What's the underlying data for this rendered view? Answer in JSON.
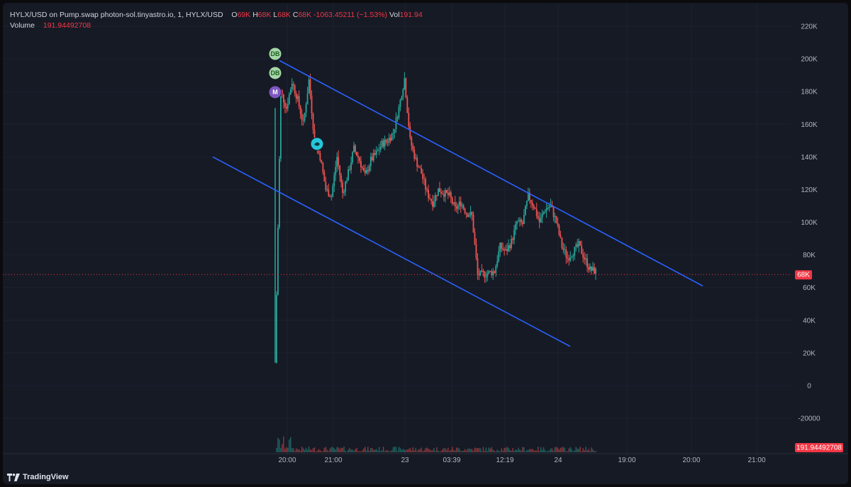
{
  "legend": {
    "symbol": "HYLX/USD on Pump.swap photon-sol.tinyastro.io, 1, HYLX/USD",
    "o_label": "O",
    "o_value": "69K",
    "h_label": "H",
    "h_value": "68K",
    "l_label": "L",
    "l_value": "68K",
    "c_label": "C",
    "c_value": "68K",
    "change": "-1063.45211 (−1.53%)",
    "vol_label": "Vol",
    "vol_value": "191.94",
    "volume_label": "Volume",
    "volume_value": "191.94492708"
  },
  "price_axis": {
    "ticks": [
      "220K",
      "200K",
      "180K",
      "160K",
      "140K",
      "120K",
      "100K",
      "80K",
      "60K",
      "40K",
      "20K",
      "0",
      "-20000"
    ],
    "tick_values": [
      220000,
      200000,
      180000,
      160000,
      140000,
      120000,
      100000,
      80000,
      60000,
      40000,
      20000,
      0,
      -20000
    ],
    "current_price_label": "68K",
    "current_price_value": 68000,
    "volume_label": "191.94492708"
  },
  "time_axis": {
    "ticks": [
      "20:00",
      "21:00",
      "23",
      "03:39",
      "12:19",
      "24",
      "19:00",
      "20:00",
      "21:00"
    ]
  },
  "badges": [
    {
      "icon": "db-icon",
      "text": "DB",
      "color": "#a5d6a7"
    },
    {
      "icon": "db-icon",
      "text": "DB",
      "color": "#a5d6a7"
    },
    {
      "icon": "m-icon",
      "text": "M",
      "color": "#7e57c2"
    },
    {
      "icon": "bird-icon",
      "text": "",
      "color": "#26c6da"
    }
  ],
  "colors": {
    "background": "#161a25",
    "up": "#26a69a",
    "down": "#ef5350",
    "trendline": "#2962ff",
    "price_line": "#f23645"
  },
  "chart_data": {
    "type": "candlestick",
    "y_range": [
      -30000,
      228000
    ],
    "current_price": 68000,
    "trendlines": [
      {
        "name": "upper",
        "from": {
          "x_label": "19:55",
          "y": 199000
        },
        "to": {
          "x_label": "20:05+",
          "y": 60000
        }
      },
      {
        "name": "lower",
        "from": {
          "x_label": "19:40",
          "y": 140000
        },
        "to": {
          "x_label": "24+",
          "y": 24000
        }
      }
    ],
    "price_path": [
      [
        0,
        14000
      ],
      [
        1,
        180000
      ],
      [
        2,
        170000
      ],
      [
        3,
        186000
      ],
      [
        4,
        175000
      ],
      [
        5,
        160000
      ],
      [
        6,
        187000
      ],
      [
        7,
        150000
      ],
      [
        8,
        140000
      ],
      [
        9,
        120000
      ],
      [
        10,
        116000
      ],
      [
        11,
        140000
      ],
      [
        12,
        118000
      ],
      [
        13,
        130000
      ],
      [
        14,
        145000
      ],
      [
        15,
        138000
      ],
      [
        16,
        128000
      ],
      [
        17,
        138000
      ],
      [
        18,
        142000
      ],
      [
        19,
        148000
      ],
      [
        20,
        150000
      ],
      [
        21,
        155000
      ],
      [
        22,
        170000
      ],
      [
        23,
        188000
      ],
      [
        24,
        150000
      ],
      [
        25,
        138000
      ],
      [
        26,
        130000
      ],
      [
        27,
        118000
      ],
      [
        28,
        112000
      ],
      [
        29,
        120000
      ],
      [
        30,
        118000
      ],
      [
        31,
        116000
      ],
      [
        32,
        108000
      ],
      [
        33,
        112000
      ],
      [
        34,
        106000
      ],
      [
        35,
        104000
      ],
      [
        36,
        68000
      ],
      [
        37,
        68000
      ],
      [
        38,
        69000
      ],
      [
        39,
        70000
      ],
      [
        40,
        85000
      ],
      [
        41,
        82000
      ],
      [
        42,
        88000
      ],
      [
        43,
        100000
      ],
      [
        44,
        99000
      ],
      [
        45,
        116000
      ],
      [
        46,
        110000
      ],
      [
        47,
        100000
      ],
      [
        48,
        108000
      ],
      [
        49,
        110000
      ],
      [
        50,
        100000
      ],
      [
        51,
        85000
      ],
      [
        52,
        78000
      ],
      [
        53,
        82000
      ],
      [
        54,
        86000
      ],
      [
        55,
        78000
      ],
      [
        56,
        71000
      ],
      [
        57,
        70000
      ]
    ]
  }
}
